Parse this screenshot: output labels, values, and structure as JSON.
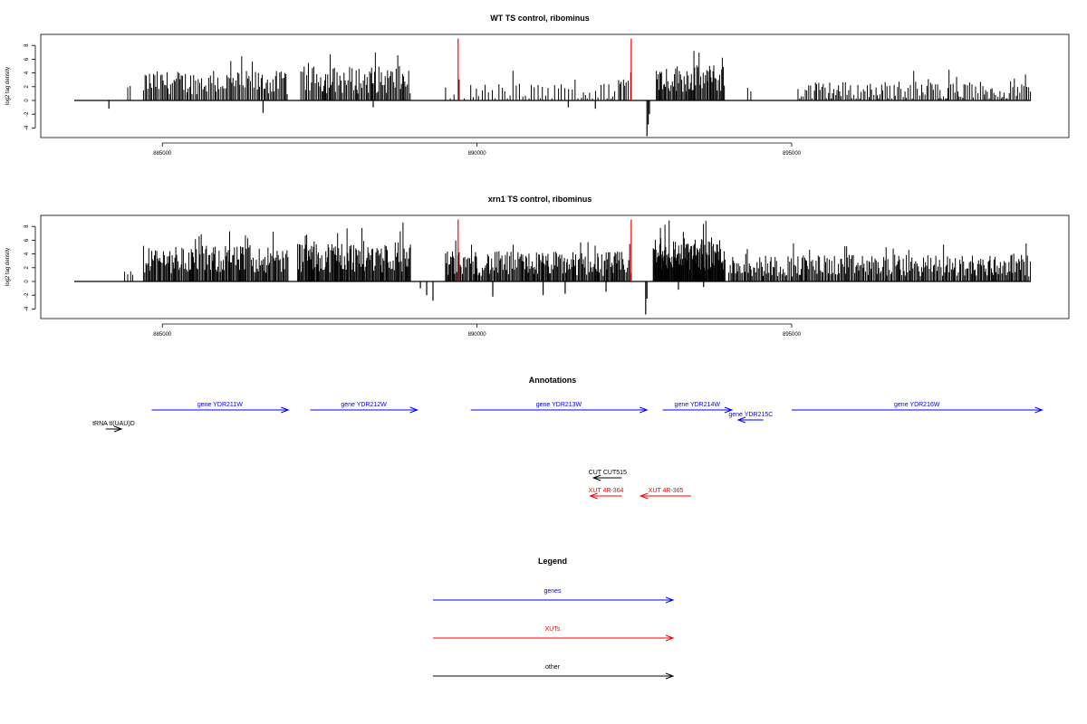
{
  "colors": {
    "genes": "#0000ff",
    "XUTs": "#ff0000",
    "other": "#000000",
    "data": "#000000",
    "marker": "#ff0000"
  },
  "chart_data": [
    {
      "type": "bar",
      "title": "WT TS control, ribominus",
      "ylabel": "log2 tag density",
      "xlim": [
        883600,
        898800
      ],
      "ylim": [
        -5,
        10
      ],
      "xticks": [
        885000,
        890000,
        895000
      ],
      "xtick_labels": [
        "885000",
        "890000",
        "895000"
      ],
      "yticks": [
        -4,
        -2,
        0,
        2,
        4,
        6,
        8
      ],
      "ytick_labels": [
        "-4",
        "-2",
        "0",
        "2",
        "4",
        "6",
        "8"
      ],
      "markers": [
        889700,
        892450
      ],
      "segments": [
        {
          "start": 884450,
          "end": 884520,
          "mean": 1.8,
          "amp": 0.3,
          "step": 35
        },
        {
          "start": 884700,
          "end": 887000,
          "mean": 2.6,
          "amp": 1.7,
          "step": 22
        },
        {
          "start": 887200,
          "end": 888950,
          "mean": 3.0,
          "amp": 2.0,
          "step": 20
        },
        {
          "start": 889500,
          "end": 889800,
          "mean": 0.9,
          "amp": 1.0,
          "step": 60
        },
        {
          "start": 889900,
          "end": 892200,
          "mean": 1.1,
          "amp": 1.5,
          "step": 45
        },
        {
          "start": 892250,
          "end": 892450,
          "mean": 2.5,
          "amp": 1.2,
          "step": 30
        },
        {
          "start": 892850,
          "end": 893950,
          "mean": 3.2,
          "amp": 2.0,
          "step": 16
        },
        {
          "start": 894300,
          "end": 894400,
          "mean": 1.5,
          "amp": 1.0,
          "step": 50
        },
        {
          "start": 895100,
          "end": 898800,
          "mean": 1.4,
          "amp": 1.4,
          "step": 28
        }
      ],
      "negatives": [
        {
          "x": 884150,
          "y": -1.2
        },
        {
          "x": 886600,
          "y": -1.8
        },
        {
          "x": 888350,
          "y": -1.0
        },
        {
          "x": 891450,
          "y": -1.0
        },
        {
          "x": 891880,
          "y": -1.2
        },
        {
          "x": 892700,
          "y": -5.2
        },
        {
          "x": 892720,
          "y": -3.5
        },
        {
          "x": 892740,
          "y": -2.0
        }
      ]
    },
    {
      "type": "bar",
      "title": "xrn1 TS control, ribominus",
      "ylabel": "log2 tag density",
      "xlim": [
        883600,
        898800
      ],
      "ylim": [
        -5,
        10
      ],
      "xticks": [
        885000,
        890000,
        895000
      ],
      "xtick_labels": [
        "885000",
        "890000",
        "895000"
      ],
      "yticks": [
        -4,
        -2,
        0,
        2,
        4,
        6,
        8
      ],
      "ytick_labels": [
        "-4",
        "-2",
        "0",
        "2",
        "4",
        "6",
        "8"
      ],
      "markers": [
        889700,
        892450
      ],
      "segments": [
        {
          "start": 884400,
          "end": 884550,
          "mean": 1.2,
          "amp": 0.4,
          "step": 40
        },
        {
          "start": 884700,
          "end": 887000,
          "mean": 3.2,
          "amp": 2.0,
          "step": 16
        },
        {
          "start": 887150,
          "end": 888950,
          "mean": 3.6,
          "amp": 2.3,
          "step": 14
        },
        {
          "start": 889500,
          "end": 892450,
          "mean": 2.6,
          "amp": 1.8,
          "step": 16
        },
        {
          "start": 892800,
          "end": 893950,
          "mean": 4.0,
          "amp": 2.4,
          "step": 10
        },
        {
          "start": 894000,
          "end": 898800,
          "mean": 2.3,
          "amp": 1.6,
          "step": 18
        }
      ],
      "negatives": [
        {
          "x": 889100,
          "y": -1.0
        },
        {
          "x": 889200,
          "y": -2.0
        },
        {
          "x": 889300,
          "y": -2.8
        },
        {
          "x": 890250,
          "y": -2.2
        },
        {
          "x": 891050,
          "y": -2.0
        },
        {
          "x": 891400,
          "y": -1.8
        },
        {
          "x": 892050,
          "y": -1.5
        },
        {
          "x": 892680,
          "y": -4.8
        },
        {
          "x": 892700,
          "y": -2.5
        },
        {
          "x": 893200,
          "y": -1.2
        },
        {
          "x": 893600,
          "y": -0.8
        }
      ]
    }
  ],
  "annotations": {
    "title": "Annotations",
    "features": [
      {
        "label": "gene YDR211W",
        "start": 884830,
        "end": 887000,
        "strand": "+",
        "row": 0,
        "type": "genes"
      },
      {
        "label": "gene YDR212W",
        "start": 887350,
        "end": 889050,
        "strand": "+",
        "row": 0,
        "type": "genes"
      },
      {
        "label": "gene YDR213W",
        "start": 889900,
        "end": 892700,
        "strand": "+",
        "row": 0,
        "type": "genes"
      },
      {
        "label": "gene YDR214W",
        "start": 892950,
        "end": 894050,
        "strand": "+",
        "row": 0,
        "type": "genes"
      },
      {
        "label": "gene YDR215C",
        "start": 894150,
        "end": 894550,
        "strand": "-",
        "row": 1,
        "type": "genes"
      },
      {
        "label": "gene YDR216W",
        "start": 895000,
        "end": 898980,
        "strand": "+",
        "row": 0,
        "type": "genes"
      },
      {
        "label": "tRNA tI(UAU)D",
        "start": 884100,
        "end": 884350,
        "strand": "+",
        "row": 2,
        "type": "other"
      },
      {
        "label": "CUT CUT515",
        "start": 891850,
        "end": 892300,
        "strand": "-",
        "row": 3,
        "type": "other"
      },
      {
        "label": "XUT 4R-364",
        "start": 891800,
        "end": 892300,
        "strand": "-",
        "row": 4,
        "type": "XUTs"
      },
      {
        "label": "XUT 4R-365",
        "start": 892600,
        "end": 893400,
        "strand": "-",
        "row": 4,
        "type": "XUTs"
      }
    ]
  },
  "legend": {
    "title": "Legend",
    "items": [
      {
        "label": "genes",
        "type": "genes"
      },
      {
        "label": "XUTs",
        "type": "XUTs"
      },
      {
        "label": "other",
        "type": "other"
      }
    ]
  }
}
